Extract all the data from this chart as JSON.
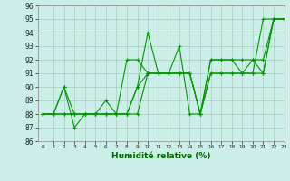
{
  "background_color": "#cceee8",
  "grid_color": "#aaccbb",
  "line_color": "#009900",
  "xlabel": "Humidité relative (%)",
  "xlabel_color": "#006600",
  "ylim": [
    86,
    96
  ],
  "xlim": [
    -0.5,
    23
  ],
  "yticks": [
    86,
    87,
    88,
    89,
    90,
    91,
    92,
    93,
    94,
    95,
    96
  ],
  "xticks": [
    0,
    1,
    2,
    3,
    4,
    5,
    6,
    7,
    8,
    9,
    10,
    11,
    12,
    13,
    14,
    15,
    16,
    17,
    18,
    19,
    20,
    21,
    22,
    23
  ],
  "series": [
    [
      88,
      88,
      90,
      87,
      88,
      88,
      89,
      88,
      92,
      92,
      91,
      91,
      91,
      91,
      91,
      88,
      92,
      92,
      92,
      92,
      92,
      91,
      95,
      95
    ],
    [
      88,
      88,
      90,
      88,
      88,
      88,
      88,
      88,
      88,
      90,
      94,
      91,
      91,
      91,
      91,
      88,
      91,
      91,
      91,
      91,
      91,
      95,
      95,
      95
    ],
    [
      88,
      88,
      88,
      88,
      88,
      88,
      88,
      88,
      88,
      90,
      91,
      91,
      91,
      91,
      91,
      88,
      91,
      91,
      91,
      91,
      91,
      91,
      95,
      95
    ],
    [
      88,
      88,
      88,
      88,
      88,
      88,
      88,
      88,
      88,
      88,
      91,
      91,
      91,
      93,
      88,
      88,
      92,
      92,
      92,
      91,
      92,
      92,
      95,
      95
    ]
  ]
}
